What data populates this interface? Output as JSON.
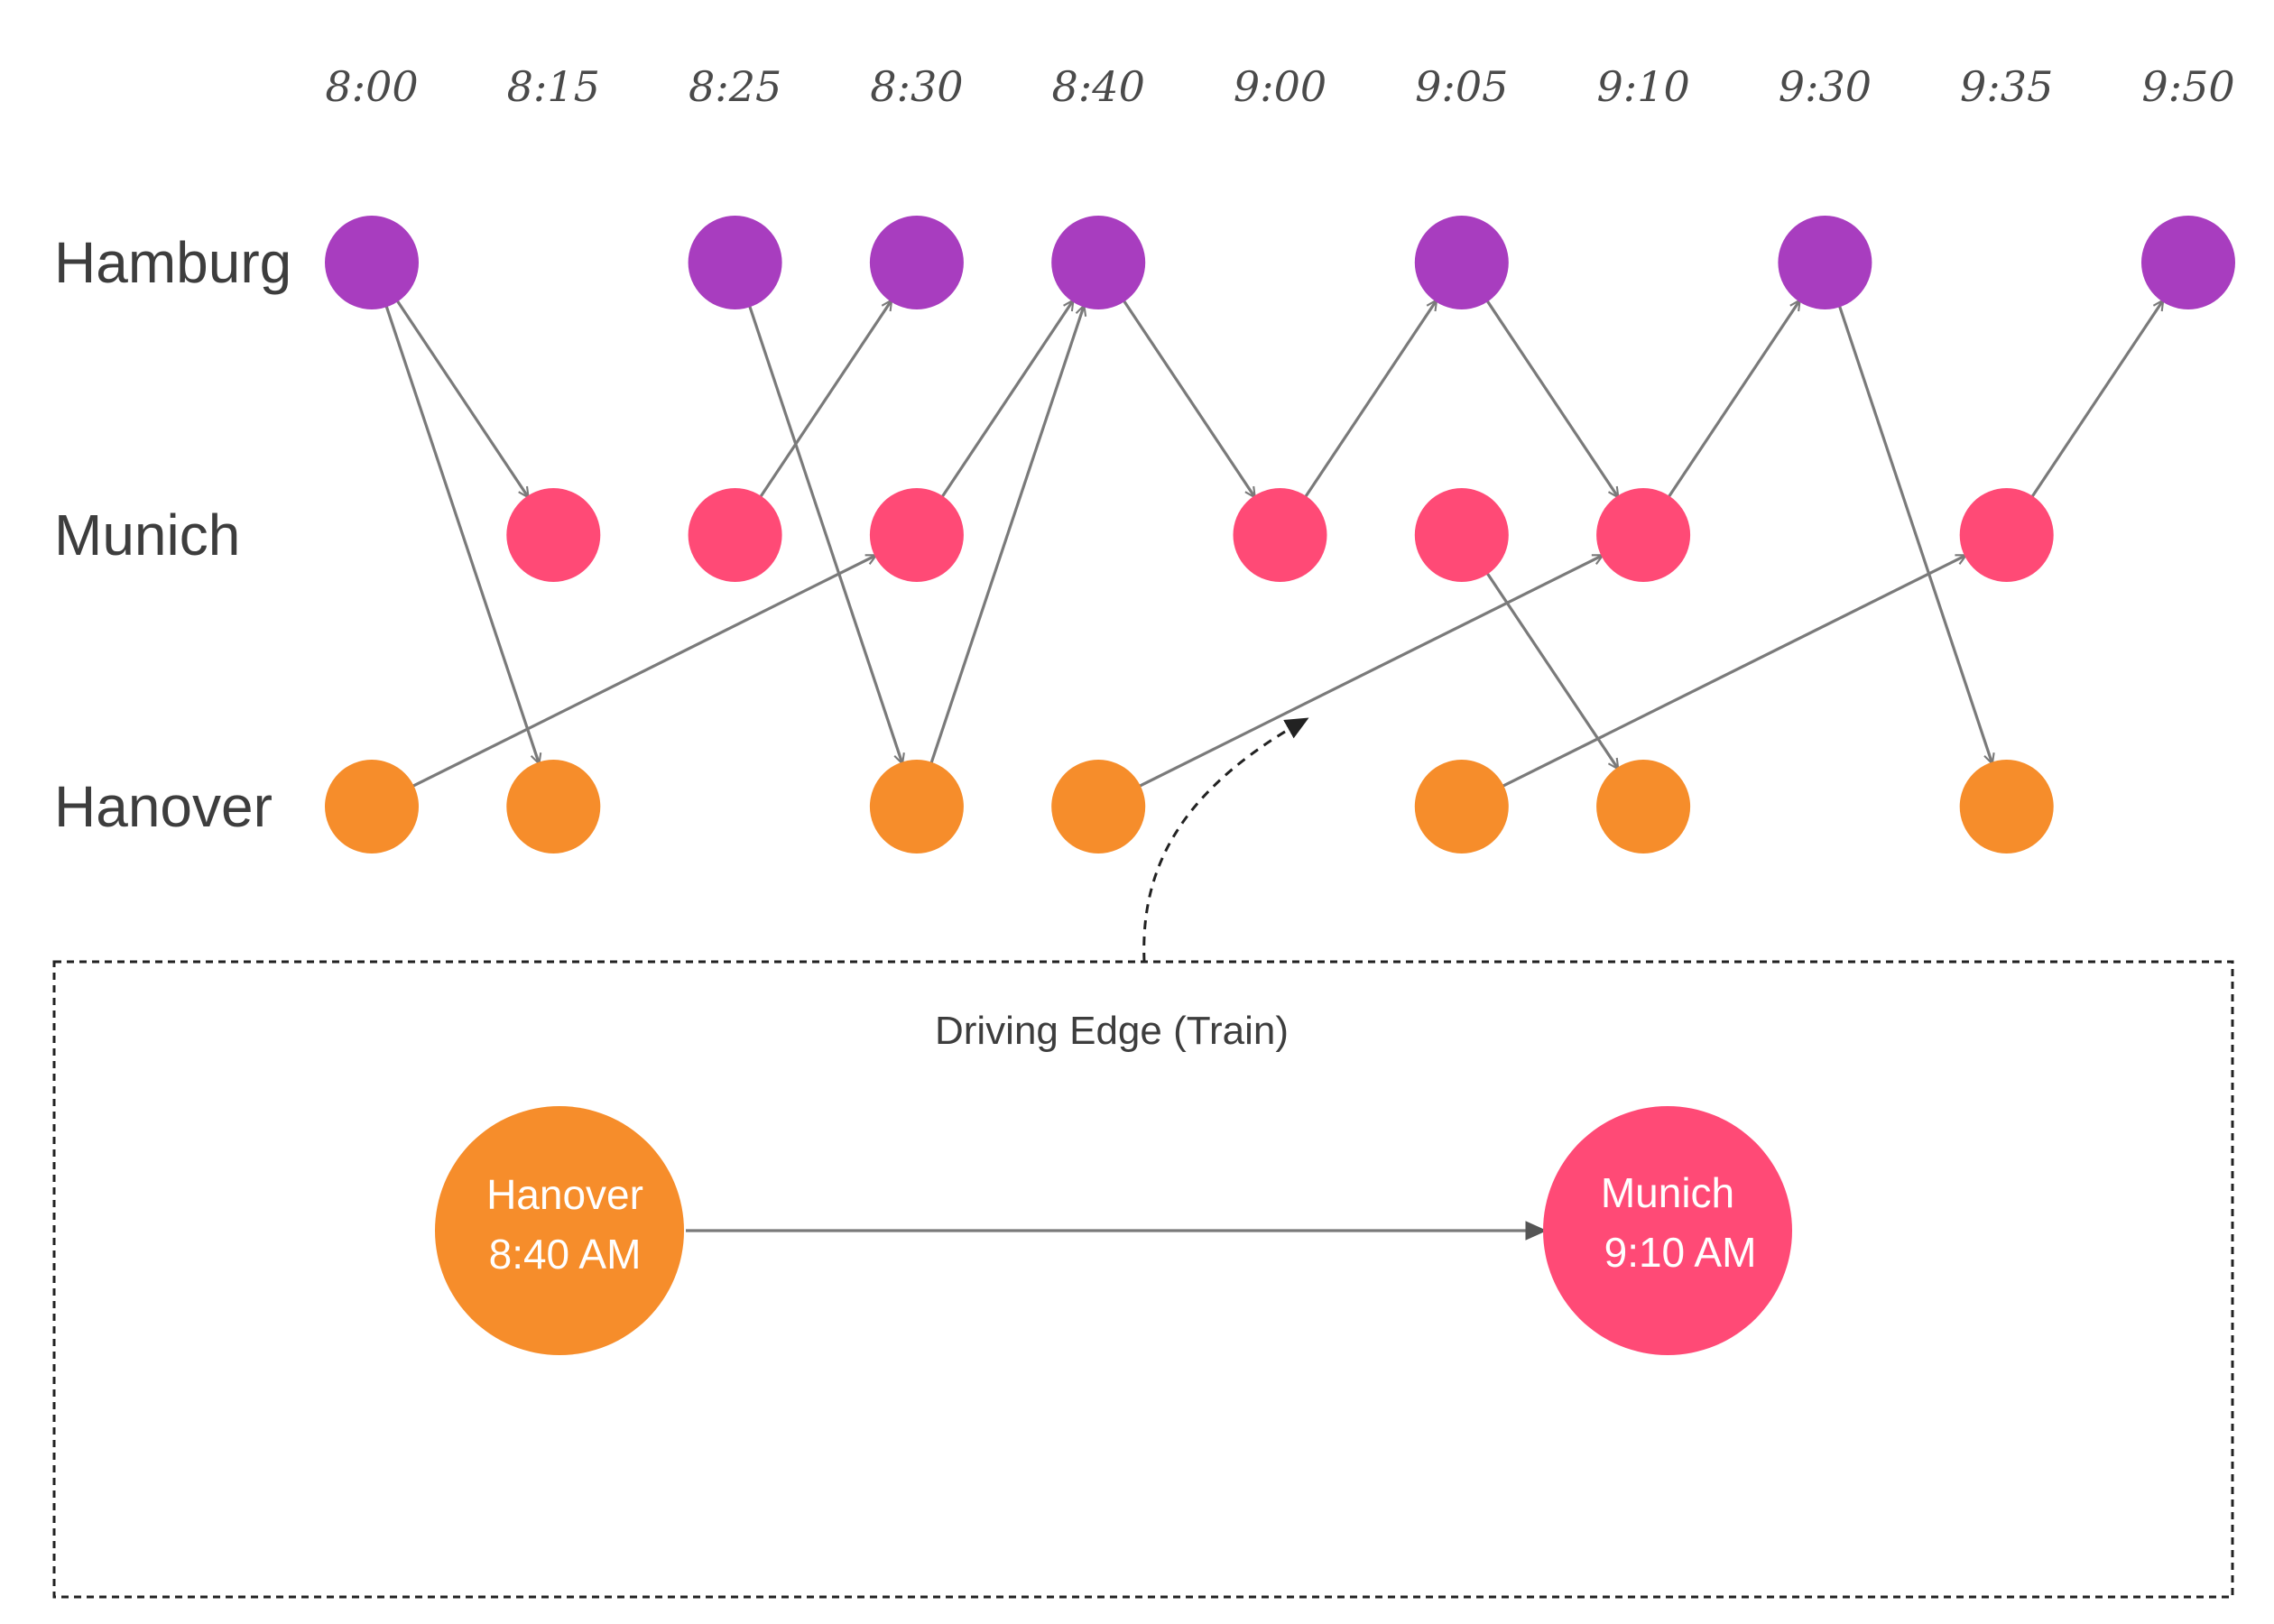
{
  "times": [
    "8:00",
    "8:15",
    "8:25",
    "8:30",
    "8:40",
    "9:00",
    "9:05",
    "9:10",
    "9:30",
    "9:35",
    "9:50"
  ],
  "stations": [
    {
      "key": "hamburg",
      "label": "Hamburg",
      "color": "#a83dbf"
    },
    {
      "key": "munich",
      "label": "Munich",
      "color": "#ff4a76"
    },
    {
      "key": "hanover",
      "label": "Hanover",
      "color": "#f68d2b"
    }
  ],
  "events": [
    {
      "station": "hamburg",
      "time": "8:00"
    },
    {
      "station": "hamburg",
      "time": "8:25"
    },
    {
      "station": "hamburg",
      "time": "8:30"
    },
    {
      "station": "hamburg",
      "time": "8:40"
    },
    {
      "station": "hamburg",
      "time": "9:05"
    },
    {
      "station": "hamburg",
      "time": "9:30"
    },
    {
      "station": "hamburg",
      "time": "9:50"
    },
    {
      "station": "munich",
      "time": "8:15"
    },
    {
      "station": "munich",
      "time": "8:25"
    },
    {
      "station": "munich",
      "time": "8:30"
    },
    {
      "station": "munich",
      "time": "9:00"
    },
    {
      "station": "munich",
      "time": "9:05"
    },
    {
      "station": "munich",
      "time": "9:10"
    },
    {
      "station": "munich",
      "time": "9:35"
    },
    {
      "station": "hanover",
      "time": "8:00"
    },
    {
      "station": "hanover",
      "time": "8:15"
    },
    {
      "station": "hanover",
      "time": "8:30"
    },
    {
      "station": "hanover",
      "time": "8:40"
    },
    {
      "station": "hanover",
      "time": "9:05"
    },
    {
      "station": "hanover",
      "time": "9:10"
    },
    {
      "station": "hanover",
      "time": "9:35"
    }
  ],
  "edges": [
    {
      "from": [
        "hamburg",
        "8:00"
      ],
      "to": [
        "munich",
        "8:15"
      ]
    },
    {
      "from": [
        "hamburg",
        "8:00"
      ],
      "to": [
        "hanover",
        "8:15"
      ]
    },
    {
      "from": [
        "munich",
        "8:25"
      ],
      "to": [
        "hamburg",
        "8:30"
      ]
    },
    {
      "from": [
        "hamburg",
        "8:25"
      ],
      "to": [
        "hanover",
        "8:30"
      ]
    },
    {
      "from": [
        "hanover",
        "8:00"
      ],
      "to": [
        "munich",
        "8:30"
      ]
    },
    {
      "from": [
        "munich",
        "8:30"
      ],
      "to": [
        "hamburg",
        "8:40"
      ]
    },
    {
      "from": [
        "hanover",
        "8:30"
      ],
      "to": [
        "hamburg",
        "8:40"
      ]
    },
    {
      "from": [
        "hamburg",
        "8:40"
      ],
      "to": [
        "munich",
        "9:00"
      ]
    },
    {
      "from": [
        "munich",
        "9:00"
      ],
      "to": [
        "hamburg",
        "9:05"
      ]
    },
    {
      "from": [
        "hamburg",
        "9:05"
      ],
      "to": [
        "munich",
        "9:10"
      ]
    },
    {
      "from": [
        "hanover",
        "8:40"
      ],
      "to": [
        "munich",
        "9:10"
      ]
    },
    {
      "from": [
        "munich",
        "9:05"
      ],
      "to": [
        "hanover",
        "9:10"
      ]
    },
    {
      "from": [
        "munich",
        "9:10"
      ],
      "to": [
        "hamburg",
        "9:30"
      ]
    },
    {
      "from": [
        "hamburg",
        "9:30"
      ],
      "to": [
        "hanover",
        "9:35"
      ]
    },
    {
      "from": [
        "hanover",
        "9:05"
      ],
      "to": [
        "munich",
        "9:35"
      ]
    },
    {
      "from": [
        "munich",
        "9:35"
      ],
      "to": [
        "hamburg",
        "9:50"
      ]
    }
  ],
  "legend": {
    "title": "Driving Edge (Train)",
    "from_node": {
      "station": "Hanover",
      "time": "8:40 AM",
      "color": "#f68d2b"
    },
    "to_node": {
      "station": "Munich",
      "time": "9:10 AM",
      "color": "#ff4a76"
    }
  }
}
